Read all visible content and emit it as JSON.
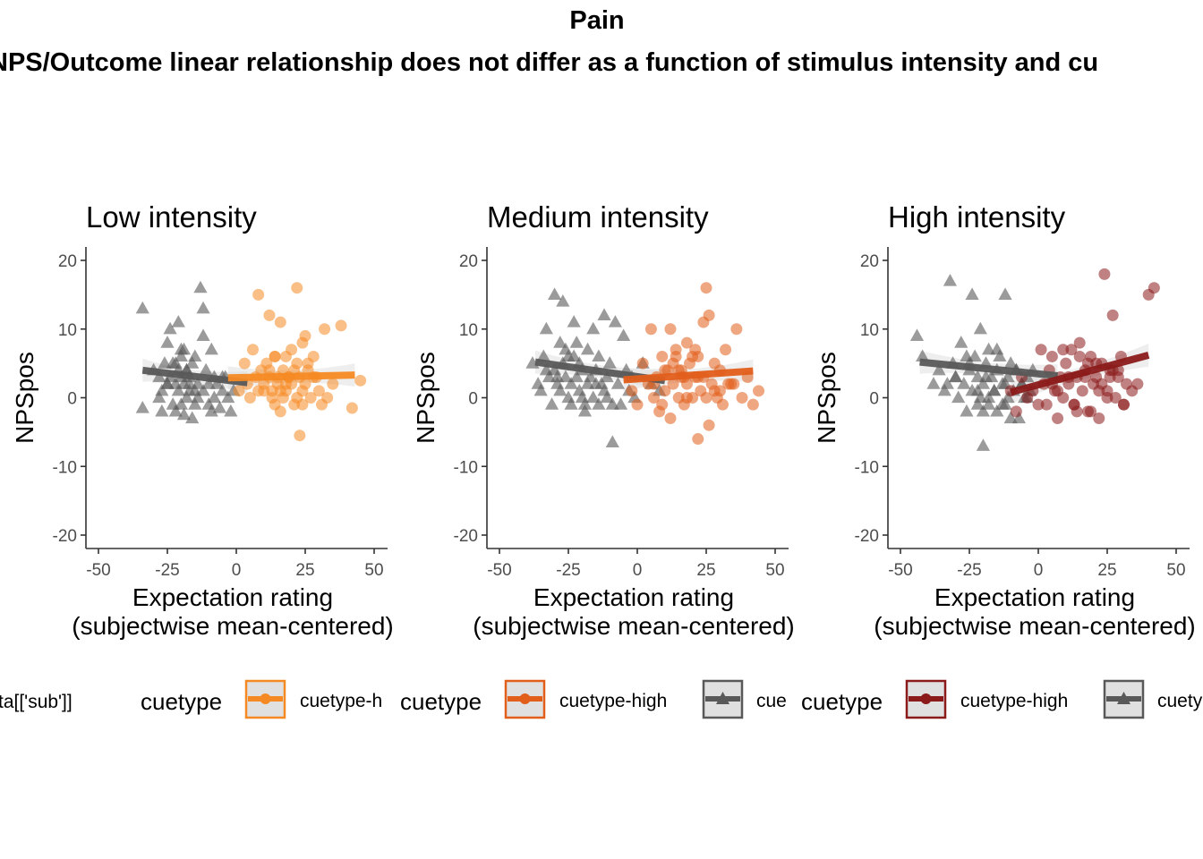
{
  "figure": {
    "title": "Pain",
    "subtitle": "NPS/Outcome linear relationship does not differ as a function of stimulus intensity and cu"
  },
  "legend": {
    "fragment_label": "ta[['sub']]",
    "groups": [
      {
        "title": "cuetype",
        "item1_label": "cuetype-h",
        "item1_color": "#F58A24",
        "item2_label": "",
        "item2_color": "#595959"
      },
      {
        "title": "cuetype",
        "item1_label": "cuetype-high",
        "item1_color": "#E25E1B",
        "item2_label": "cue",
        "item2_color": "#595959"
      },
      {
        "title": "cuetype",
        "item1_label": "cuetype-high",
        "item1_color": "#8B1A1A",
        "item2_label": "cuety",
        "item2_color": "#595959"
      }
    ]
  },
  "chart_data": [
    {
      "type": "scatter",
      "title": "Low intensity",
      "xlabel_line1": "Expectation rating",
      "xlabel_line2": "(subjectwise mean-centered)",
      "ylabel": "NPSpos",
      "xlim": [
        -55,
        55
      ],
      "ylim": [
        -22,
        22
      ],
      "x_ticks": [
        -50,
        -25,
        0,
        25,
        50
      ],
      "x_tick_labels": [
        "-50",
        "-25",
        "0",
        "25",
        "50"
      ],
      "y_ticks": [
        -20,
        -10,
        0,
        10,
        20
      ],
      "y_tick_labels": [
        "-20",
        "-10",
        "0",
        "10",
        "20"
      ],
      "series": [
        {
          "name": "cuetype-low",
          "marker": "triangle",
          "color": "#595959",
          "x": [
            -34,
            -34,
            -30,
            -28,
            -27,
            -27,
            -26,
            -25,
            -25,
            -24,
            -24,
            -23,
            -23,
            -22,
            -22,
            -21,
            -21,
            -21,
            -20,
            -20,
            -20,
            -19,
            -19,
            -19,
            -18,
            -18,
            -17,
            -17,
            -16,
            -16,
            -15,
            -15,
            -14,
            -14,
            -13,
            -12,
            -12,
            -11,
            -10,
            -10,
            -9,
            -8,
            -8,
            -7,
            -6,
            -5,
            -4,
            -3,
            -2,
            -1,
            -20,
            -18,
            -15,
            -12,
            -25,
            -28,
            -22,
            -17,
            -9,
            -5
          ],
          "y": [
            13,
            -1.5,
            4,
            3,
            1,
            -2,
            5,
            2,
            8,
            3,
            10,
            -1,
            5,
            2,
            -2,
            4,
            1,
            11,
            3,
            6,
            -1,
            2,
            -2.5,
            7,
            4,
            0,
            1,
            3,
            5,
            -3,
            -1,
            6,
            2,
            0,
            16,
            9,
            1,
            4,
            2,
            -1,
            7,
            3,
            0,
            2,
            -1.5,
            1,
            3,
            0,
            -2,
            1,
            7,
            4,
            1,
            13,
            2,
            0,
            5,
            2,
            -2,
            3
          ],
          "fit": {
            "x": [
              -34,
              4
            ],
            "y": [
              4.0,
              2.2
            ]
          }
        },
        {
          "name": "cuetype-high",
          "marker": "circle",
          "color": "#F58A24",
          "x": [
            1,
            3,
            4,
            5,
            6,
            7,
            8,
            9,
            10,
            10,
            11,
            12,
            12,
            13,
            13,
            14,
            14,
            15,
            15,
            16,
            16,
            17,
            17,
            18,
            18,
            19,
            20,
            20,
            21,
            21,
            22,
            22,
            23,
            23,
            24,
            24,
            25,
            25,
            26,
            27,
            28,
            29,
            30,
            31,
            32,
            35,
            38,
            42,
            45,
            8,
            12,
            18,
            22,
            28,
            33,
            14,
            16,
            24,
            19,
            26
          ],
          "y": [
            1,
            5,
            2,
            0,
            7,
            3,
            15,
            4,
            2,
            1,
            5,
            12,
            3,
            0,
            1,
            6,
            -1,
            3,
            2,
            11,
            -2,
            4,
            0,
            6,
            1,
            3,
            7,
            2,
            -1,
            4,
            5,
            0,
            -5.5,
            3,
            8,
            1,
            2,
            9,
            4,
            0,
            6,
            3,
            1,
            -1,
            10,
            2,
            10.5,
            -1.5,
            2.5,
            1,
            4,
            2,
            16,
            3,
            0,
            6,
            1,
            -1,
            3,
            5
          ],
          "fit": {
            "x": [
              -3,
              43
            ],
            "y": [
              2.9,
              3.3
            ]
          }
        }
      ]
    },
    {
      "type": "scatter",
      "title": "Medium intensity",
      "xlabel_line1": "Expectation rating",
      "xlabel_line2": "(subjectwise mean-centered)",
      "ylabel": "NPSpos",
      "xlim": [
        -55,
        55
      ],
      "ylim": [
        -22,
        22
      ],
      "x_ticks": [
        -50,
        -25,
        0,
        25,
        50
      ],
      "x_tick_labels": [
        "-50",
        "-25",
        "0",
        "25",
        "50"
      ],
      "y_ticks": [
        -20,
        -10,
        0,
        10,
        20
      ],
      "y_tick_labels": [
        "-20",
        "-10",
        "0",
        "10",
        "20"
      ],
      "series": [
        {
          "name": "cuetype-low",
          "marker": "triangle",
          "color": "#595959",
          "x": [
            -38,
            -36,
            -35,
            -34,
            -33,
            -32,
            -31,
            -30,
            -30,
            -29,
            -28,
            -28,
            -27,
            -27,
            -26,
            -25,
            -25,
            -24,
            -24,
            -23,
            -22,
            -22,
            -21,
            -21,
            -20,
            -20,
            -19,
            -18,
            -18,
            -17,
            -16,
            -16,
            -15,
            -14,
            -14,
            -13,
            -12,
            -11,
            -11,
            -10,
            -9,
            -8,
            -7,
            -6,
            -5,
            -4,
            -3,
            -2,
            -1,
            2,
            5,
            8,
            -33,
            -26,
            -19,
            -12,
            -29,
            -23,
            -15,
            -9
          ],
          "y": [
            5,
            2,
            1,
            6,
            10,
            3,
            -1,
            4,
            15,
            2,
            8,
            1,
            14,
            5,
            3,
            0,
            6,
            2,
            -1,
            11,
            3,
            8,
            1,
            5,
            0,
            4,
            -1,
            7,
            2,
            3,
            10,
            0,
            4,
            -1,
            6,
            2,
            12,
            3,
            0,
            5,
            -6.5,
            11,
            2,
            -1,
            9,
            4,
            1,
            3,
            0,
            5,
            2,
            1,
            4,
            7,
            -2,
            1,
            3,
            6,
            2,
            -1
          ],
          "fit": {
            "x": [
              -37,
              10
            ],
            "y": [
              5.2,
              2.5
            ]
          }
        },
        {
          "name": "cuetype-high",
          "marker": "circle",
          "color": "#E25E1B",
          "x": [
            -2,
            0,
            2,
            4,
            5,
            6,
            7,
            8,
            9,
            10,
            11,
            12,
            12,
            13,
            14,
            15,
            15,
            16,
            17,
            18,
            18,
            19,
            20,
            21,
            22,
            22,
            23,
            24,
            24,
            25,
            26,
            27,
            28,
            29,
            30,
            31,
            32,
            34,
            36,
            38,
            40,
            42,
            44,
            6,
            10,
            14,
            18,
            22,
            26,
            30,
            35,
            9,
            13,
            17,
            21,
            25,
            33,
            16,
            20,
            28
          ],
          "y": [
            1,
            -1,
            5,
            2,
            10,
            0,
            3,
            -2,
            6,
            1,
            4,
            10,
            -3,
            2,
            7,
            0,
            4,
            3,
            -1,
            8,
            2,
            5,
            0,
            3,
            -6,
            6,
            1,
            11,
            3,
            16,
            -4,
            2,
            5,
            0,
            4,
            -1,
            7,
            2,
            10,
            0,
            3,
            -1,
            1,
            2,
            4,
            6,
            0,
            3,
            12,
            1,
            2,
            -1,
            5,
            3,
            7,
            0,
            2,
            4,
            6,
            1
          ],
          "fit": {
            "x": [
              -5,
              42
            ],
            "y": [
              2.6,
              3.9
            ]
          }
        }
      ]
    },
    {
      "type": "scatter",
      "title": "High intensity",
      "xlabel_line1": "Expectation rating",
      "xlabel_line2": "(subjectwise mean-centered)",
      "ylabel": "NPSpos",
      "xlim": [
        -55,
        55
      ],
      "ylim": [
        -22,
        22
      ],
      "x_ticks": [
        -50,
        -25,
        0,
        25,
        50
      ],
      "x_tick_labels": [
        "-50",
        "-25",
        "0",
        "25",
        "50"
      ],
      "y_ticks": [
        -20,
        -10,
        0,
        10,
        20
      ],
      "y_tick_labels": [
        "-20",
        "-10",
        "0",
        "10",
        "20"
      ],
      "series": [
        {
          "name": "cuetype-low",
          "marker": "triangle",
          "color": "#595959",
          "x": [
            -44,
            -42,
            -38,
            -36,
            -34,
            -32,
            -31,
            -30,
            -29,
            -28,
            -27,
            -26,
            -25,
            -24,
            -24,
            -23,
            -22,
            -22,
            -21,
            -20,
            -20,
            -19,
            -18,
            -18,
            -17,
            -16,
            -15,
            -15,
            -14,
            -13,
            -12,
            -12,
            -11,
            -11,
            -10,
            -9,
            -8,
            -7,
            -6,
            -5,
            -4,
            -3,
            -20,
            -25,
            -30,
            -15,
            -22,
            -18,
            -12,
            -8,
            -21,
            -26,
            -33,
            -10,
            -16,
            -19,
            -13,
            -6,
            -4,
            -2
          ],
          "y": [
            9,
            6,
            2,
            4,
            1,
            17,
            5,
            3,
            0,
            8,
            2,
            -2,
            4,
            1,
            15,
            6,
            3,
            -1,
            10,
            2,
            -7,
            5,
            0,
            7,
            3,
            1,
            -2,
            4,
            6,
            2,
            15,
            -1,
            3,
            0,
            5,
            1,
            4,
            -3,
            2,
            0,
            3,
            1,
            -2,
            5,
            3,
            7,
            1,
            -1,
            2,
            4,
            0,
            6,
            2,
            -3,
            1,
            3,
            -1,
            2,
            0,
            4
          ],
          "fit": {
            "x": [
              -43,
              7
            ],
            "y": [
              5.2,
              3.2
            ]
          }
        },
        {
          "name": "cuetype-high",
          "marker": "circle",
          "color": "#8B1A1A",
          "x": [
            -10,
            -8,
            -6,
            -4,
            -2,
            0,
            1,
            2,
            3,
            4,
            5,
            6,
            7,
            8,
            9,
            10,
            11,
            12,
            13,
            14,
            14,
            15,
            16,
            17,
            18,
            19,
            20,
            21,
            22,
            23,
            24,
            25,
            26,
            27,
            28,
            29,
            30,
            31,
            32,
            34,
            36,
            40,
            42,
            5,
            9,
            13,
            17,
            21,
            25,
            29,
            7,
            11,
            15,
            19,
            23,
            27,
            31,
            18,
            22,
            26
          ],
          "y": [
            1,
            -2,
            3,
            0,
            1,
            -1,
            7,
            2,
            -1,
            4,
            6,
            1,
            -3,
            3,
            0,
            5,
            2,
            7,
            -1,
            3,
            -2,
            8,
            1,
            4,
            -2,
            6,
            2,
            3,
            -3,
            5,
            18,
            1,
            4,
            12,
            0,
            3,
            6,
            -1,
            2,
            1,
            2,
            15,
            16,
            2,
            7,
            -1,
            3,
            5,
            0,
            4,
            1,
            3,
            6,
            -2,
            2,
            4,
            -1,
            5,
            1,
            3
          ],
          "fit": {
            "x": [
              -10,
              40
            ],
            "y": [
              0.8,
              6.2
            ]
          }
        }
      ]
    }
  ]
}
